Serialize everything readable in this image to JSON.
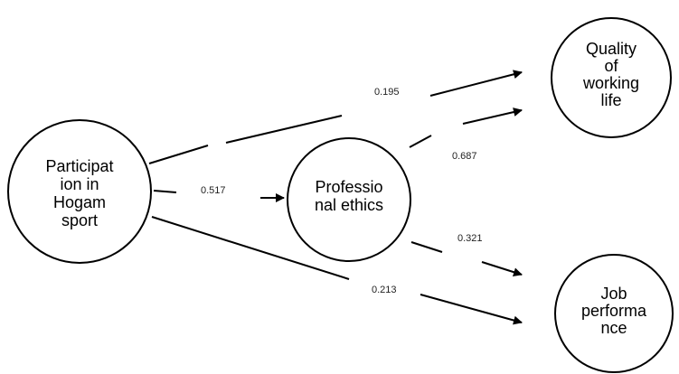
{
  "diagram": {
    "nodes": {
      "participation": {
        "lines": [
          "Participat",
          "ion in",
          "Hogam",
          "sport"
        ]
      },
      "ethics": {
        "lines": [
          "Professio",
          "nal ethics"
        ]
      },
      "quality": {
        "lines": [
          "Quality",
          "of",
          "working",
          "life"
        ]
      },
      "performance": {
        "lines": [
          "Job",
          "performa",
          "nce"
        ]
      }
    },
    "edges": {
      "participation_to_quality": {
        "coefficient": "0.195"
      },
      "participation_to_ethics": {
        "coefficient": "0.517"
      },
      "ethics_to_quality": {
        "coefficient": "0.687"
      },
      "ethics_to_performance": {
        "coefficient": "0.321"
      },
      "participation_to_performance": {
        "coefficient": "0.213"
      }
    },
    "colors": {
      "stroke": "#000000",
      "background": "#ffffff"
    }
  }
}
